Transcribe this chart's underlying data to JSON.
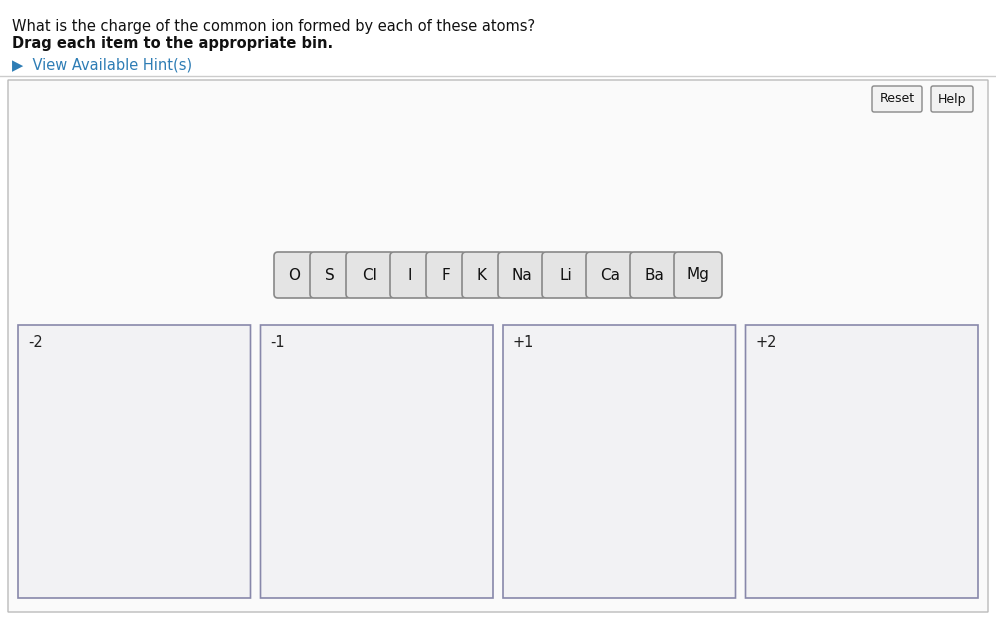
{
  "title_line1": "What is the charge of the common ion formed by each of these atoms?",
  "title_line2": "Drag each item to the appropriate bin.",
  "hint_text": "▶  View Available Hint(s)",
  "hint_color": "#2e7db5",
  "bg_color": "#ffffff",
  "panel_bg": "#fafafa",
  "panel_border": "#cccccc",
  "button_bg": "#f2f2f2",
  "button_border": "#888888",
  "elements": [
    "O",
    "S",
    "Cl",
    "I",
    "F",
    "K",
    "Na",
    "Li",
    "Ca",
    "Ba",
    "Mg"
  ],
  "bins": [
    "-2",
    "-1",
    "+1",
    "+2"
  ],
  "reset_text": "Reset",
  "help_text": "Help",
  "tile_bg": "#e4e4e4",
  "tile_border": "#888888",
  "tile_text_color": "#111111",
  "bin_label_color": "#222222",
  "bin_bg": "#f2f2f4",
  "bin_border": "#8888aa"
}
